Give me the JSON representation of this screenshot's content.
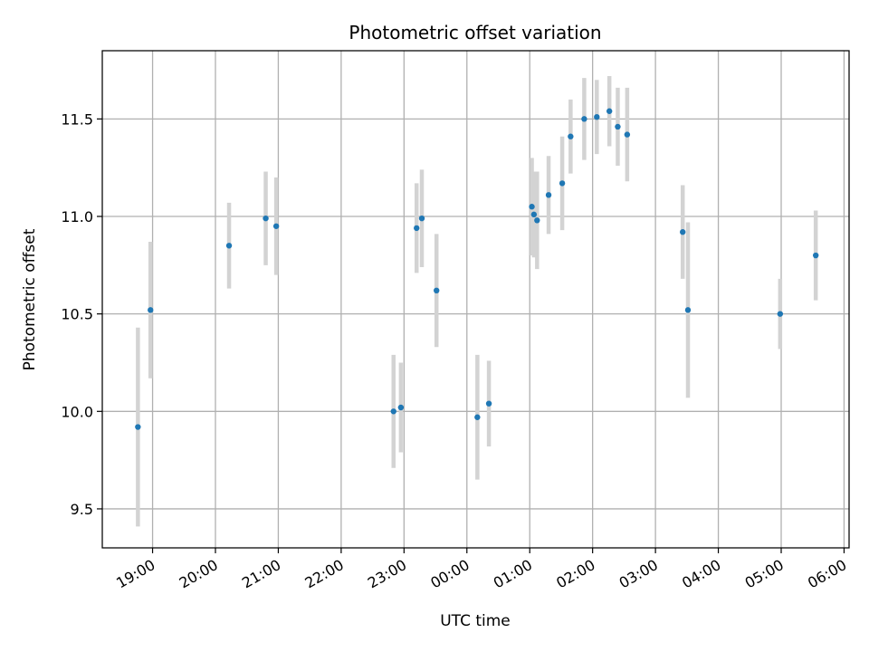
{
  "chart_data": {
    "type": "scatter",
    "title": "Photometric offset variation",
    "xlabel": "UTC time",
    "ylabel": "Photometric offset",
    "x_ticks": [
      "19:00",
      "20:00",
      "21:00",
      "22:00",
      "23:00",
      "00:00",
      "01:00",
      "02:00",
      "03:00",
      "04:00",
      "05:00",
      "06:00"
    ],
    "y_ticks": [
      "9.5",
      "10.0",
      "10.5",
      "11.0",
      "11.5"
    ],
    "xlim_hours": [
      18.2,
      30.08
    ],
    "ylim": [
      9.3,
      11.85
    ],
    "grid": true,
    "colors": {
      "point": "#1f77b4",
      "errorbar": "#d3d3d3",
      "grid": "#b0b0b0"
    },
    "points": [
      {
        "t": "18:46",
        "y": 9.92,
        "err": 0.51
      },
      {
        "t": "18:58",
        "y": 10.52,
        "err": 0.35
      },
      {
        "t": "20:13",
        "y": 10.85,
        "err": 0.22
      },
      {
        "t": "20:48",
        "y": 10.99,
        "err": 0.24
      },
      {
        "t": "20:58",
        "y": 10.95,
        "err": 0.25
      },
      {
        "t": "22:50",
        "y": 10.0,
        "err": 0.29
      },
      {
        "t": "22:57",
        "y": 10.02,
        "err": 0.23
      },
      {
        "t": "23:12",
        "y": 10.94,
        "err": 0.23
      },
      {
        "t": "23:17",
        "y": 10.99,
        "err": 0.25
      },
      {
        "t": "23:31",
        "y": 10.62,
        "err": 0.29
      },
      {
        "t": "00:10",
        "y": 9.97,
        "err": 0.32
      },
      {
        "t": "00:21",
        "y": 10.04,
        "err": 0.22
      },
      {
        "t": "01:02",
        "y": 11.05,
        "err": 0.25
      },
      {
        "t": "01:04",
        "y": 11.01,
        "err": 0.22
      },
      {
        "t": "01:07",
        "y": 10.98,
        "err": 0.25
      },
      {
        "t": "01:18",
        "y": 11.11,
        "err": 0.2
      },
      {
        "t": "01:31",
        "y": 11.17,
        "err": 0.24
      },
      {
        "t": "01:39",
        "y": 11.41,
        "err": 0.19
      },
      {
        "t": "01:52",
        "y": 11.5,
        "err": 0.21
      },
      {
        "t": "02:04",
        "y": 11.51,
        "err": 0.19
      },
      {
        "t": "02:16",
        "y": 11.54,
        "err": 0.18
      },
      {
        "t": "02:24",
        "y": 11.46,
        "err": 0.2
      },
      {
        "t": "02:33",
        "y": 11.42,
        "err": 0.24
      },
      {
        "t": "03:26",
        "y": 10.92,
        "err": 0.24
      },
      {
        "t": "03:31",
        "y": 10.52,
        "err": 0.45
      },
      {
        "t": "04:59",
        "y": 10.5,
        "err": 0.18
      },
      {
        "t": "05:33",
        "y": 10.8,
        "err": 0.23
      }
    ]
  }
}
